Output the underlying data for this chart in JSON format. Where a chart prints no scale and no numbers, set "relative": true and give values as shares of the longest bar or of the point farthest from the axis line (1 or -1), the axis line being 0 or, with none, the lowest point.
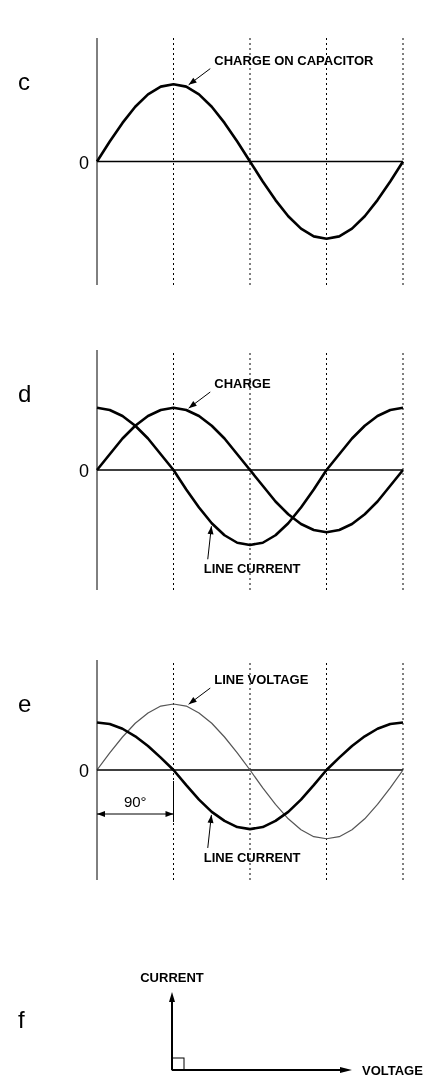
{
  "chart_data": [
    {
      "type": "line",
      "title": "c",
      "relative": true,
      "grid": "x",
      "categories": [
        null,
        null,
        null,
        null,
        null,
        null,
        null,
        null,
        null,
        null,
        null,
        null,
        null,
        null,
        null,
        null,
        null,
        null,
        null,
        null,
        null,
        null,
        null,
        null,
        null
      ],
      "series": [
        {
          "name": "CHARGE ON CAPACITOR",
          "color": "#000000",
          "values": [
            0,
            0.26,
            0.5,
            0.71,
            0.87,
            0.97,
            1,
            0.97,
            0.87,
            0.71,
            0.5,
            0.26,
            0,
            -0.26,
            -0.5,
            -0.71,
            -0.87,
            -0.97,
            -1,
            -0.97,
            -0.87,
            -0.71,
            -0.5,
            -0.26,
            0
          ]
        }
      ],
      "annotations": [
        "0"
      ]
    },
    {
      "type": "line",
      "title": "d",
      "relative": true,
      "grid": "x",
      "categories": [
        null,
        null,
        null,
        null,
        null,
        null,
        null,
        null,
        null,
        null,
        null,
        null,
        null,
        null,
        null,
        null,
        null,
        null,
        null,
        null,
        null,
        null,
        null,
        null,
        null
      ],
      "series": [
        {
          "name": "CHARGE",
          "color": "#000000",
          "values": [
            0,
            0.21,
            0.42,
            0.59,
            0.72,
            0.8,
            0.83,
            0.8,
            0.72,
            0.59,
            0.42,
            0.21,
            0,
            -0.21,
            -0.42,
            -0.59,
            -0.72,
            -0.8,
            -0.83,
            -0.8,
            -0.72,
            -0.59,
            -0.42,
            -0.21,
            0
          ]
        },
        {
          "name": "LINE CURRENT",
          "color": "#000000",
          "values": [
            0.83,
            0.8,
            0.72,
            0.59,
            0.42,
            0.21,
            0,
            -0.26,
            -0.5,
            -0.71,
            -0.87,
            -0.97,
            -1,
            -0.97,
            -0.87,
            -0.71,
            -0.5,
            -0.26,
            0,
            0.21,
            0.42,
            0.59,
            0.72,
            0.8,
            0.83
          ]
        }
      ],
      "annotations": [
        "0"
      ]
    },
    {
      "type": "line",
      "title": "e",
      "relative": true,
      "grid": "x",
      "categories": [
        null,
        null,
        null,
        null,
        null,
        null,
        null,
        null,
        null,
        null,
        null,
        null,
        null,
        null,
        null,
        null,
        null,
        null,
        null,
        null,
        null,
        null,
        null,
        null,
        null
      ],
      "series": [
        {
          "name": "LINE VOLTAGE",
          "color": "#555555",
          "values": [
            0,
            0.25,
            0.48,
            0.68,
            0.83,
            0.93,
            0.96,
            0.93,
            0.83,
            0.68,
            0.48,
            0.25,
            0,
            -0.26,
            -0.5,
            -0.71,
            -0.87,
            -0.97,
            -1,
            -0.97,
            -0.87,
            -0.71,
            -0.5,
            -0.26,
            0
          ]
        },
        {
          "name": "LINE CURRENT",
          "color": "#000000",
          "values": [
            0.69,
            0.67,
            0.6,
            0.49,
            0.35,
            0.18,
            0,
            -0.22,
            -0.43,
            -0.61,
            -0.74,
            -0.83,
            -0.86,
            -0.83,
            -0.74,
            -0.61,
            -0.43,
            -0.22,
            0,
            0.18,
            0.35,
            0.49,
            0.6,
            0.67,
            0.69
          ]
        }
      ],
      "annotations": [
        "0",
        "90°"
      ]
    },
    {
      "type": "other",
      "title": "f",
      "annotations": [
        "CURRENT",
        "VOLTAGE"
      ]
    }
  ]
}
